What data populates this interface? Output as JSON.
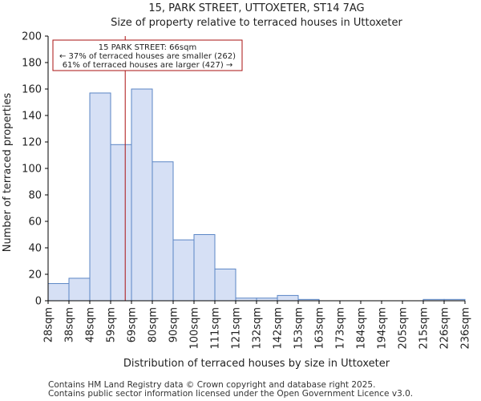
{
  "chart_data": {
    "type": "histogram",
    "title_line1": "15, PARK STREET, UTTOXETER, ST14 7AG",
    "title_line2": "Size of property relative to terraced houses in Uttoxeter",
    "xlabel": "Distribution of terraced houses by size in Uttoxeter",
    "ylabel": "Number of terraced properties",
    "categories": [
      "28sqm",
      "38sqm",
      "48sqm",
      "59sqm",
      "69sqm",
      "80sqm",
      "90sqm",
      "100sqm",
      "111sqm",
      "121sqm",
      "132sqm",
      "142sqm",
      "153sqm",
      "163sqm",
      "173sqm",
      "184sqm",
      "194sqm",
      "205sqm",
      "215sqm",
      "226sqm",
      "236sqm"
    ],
    "values": [
      13,
      17,
      157,
      118,
      160,
      105,
      46,
      50,
      24,
      2,
      2,
      4,
      1,
      0,
      0,
      0,
      0,
      0,
      1,
      1
    ],
    "ylim": [
      0,
      200
    ],
    "yticks": [
      0,
      20,
      40,
      60,
      80,
      100,
      120,
      140,
      160,
      180,
      200
    ],
    "bar_fill": "#d6e0f5",
    "bar_stroke": "#5b86c5",
    "marker": {
      "value_bin_position": 3.7,
      "color": "#aa1111",
      "line1": "15 PARK STREET: 66sqm",
      "line2": "← 37% of terraced houses are smaller (262)",
      "line3": "61% of terraced houses are larger (427) →"
    }
  },
  "footer": {
    "line1": "Contains HM Land Registry data © Crown copyright and database right 2025.",
    "line2": "Contains public sector information licensed under the Open Government Licence v3.0."
  }
}
